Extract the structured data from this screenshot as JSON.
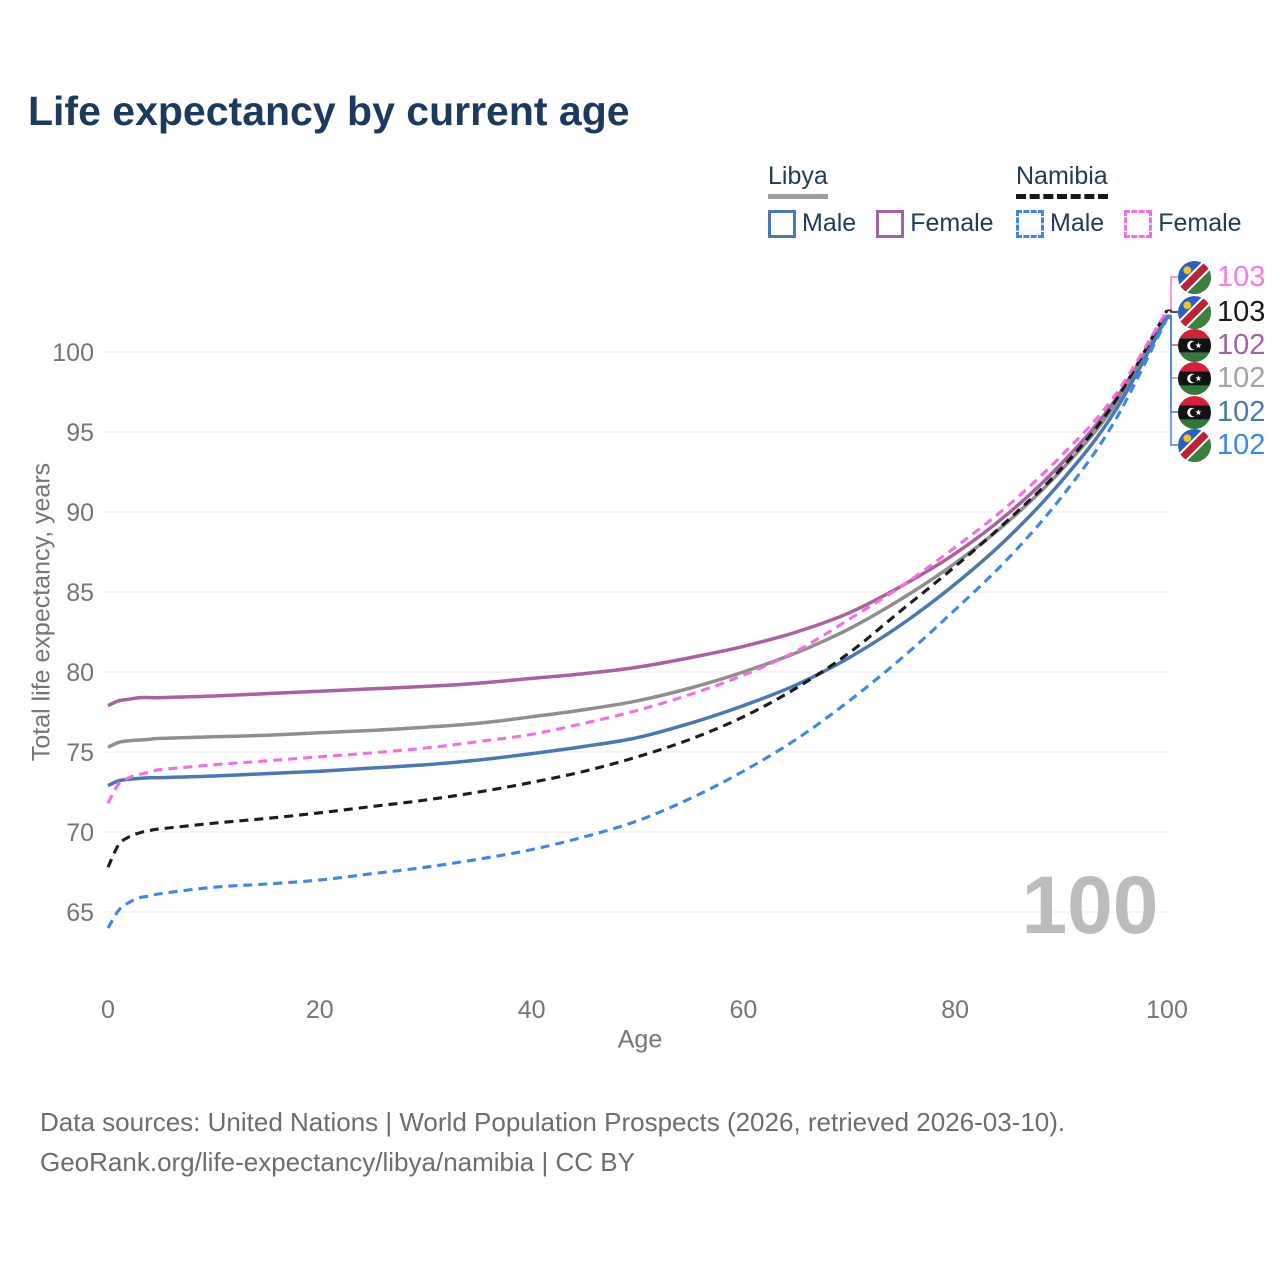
{
  "title": "Life expectancy by current age",
  "legend": {
    "groups": [
      {
        "title": "Libya",
        "line_style": "solid",
        "items": [
          {
            "label": "Male",
            "series": "libya_male"
          },
          {
            "label": "Female",
            "series": "libya_female"
          }
        ]
      },
      {
        "title": "Namibia",
        "line_style": "dashed",
        "items": [
          {
            "label": "Male",
            "series": "namibia_male"
          },
          {
            "label": "Female",
            "series": "namibia_female"
          }
        ]
      }
    ]
  },
  "watermark": {
    "value": "100"
  },
  "footer": {
    "line1": "Data sources: United Nations | World Population Prospects (2026, retrieved 2026-03-10).",
    "line2": "GeoRank.org/life-expectancy/libya/namibia | CC BY"
  },
  "colors": {
    "title_navy": "#1c3a5e",
    "axis_text": "#757575",
    "gridline": "#ebebeb",
    "watermark_gray": "#bcbcbc",
    "libya_underline": "#9e9e9e",
    "namibia_underline": "#171717"
  },
  "chart_data": {
    "type": "line",
    "title": "Life expectancy by current age",
    "xlabel": "Age",
    "ylabel": "Total life expectancy, years",
    "xlim": [
      0,
      100
    ],
    "ylim": [
      62,
      106
    ],
    "x_ticks": [
      0,
      20,
      40,
      60,
      80,
      100
    ],
    "y_ticks": [
      65,
      70,
      75,
      80,
      85,
      90,
      95,
      100
    ],
    "grid": "horizontal",
    "legend_position": "top-right",
    "x": [
      0,
      1,
      2,
      3,
      4,
      5,
      10,
      15,
      20,
      25,
      30,
      35,
      40,
      45,
      50,
      55,
      60,
      65,
      70,
      75,
      80,
      85,
      90,
      95,
      100
    ],
    "series": [
      {
        "key": "libya_female",
        "name": "Libya Female",
        "country": "Libya",
        "sex": "Female",
        "color": "#a8639f",
        "dashed": false,
        "values": [
          77.9,
          78.2,
          78.3,
          78.4,
          78.4,
          78.4,
          78.5,
          78.65,
          78.8,
          78.95,
          79.1,
          79.3,
          79.6,
          79.9,
          80.3,
          80.9,
          81.6,
          82.5,
          83.7,
          85.4,
          87.4,
          89.9,
          93.0,
          96.9,
          102.3
        ]
      },
      {
        "key": "libya_both",
        "name": "Libya Both sexes",
        "country": "Libya",
        "sex": "Both",
        "color": "#8f8f8f",
        "dashed": false,
        "values": [
          75.3,
          75.6,
          75.7,
          75.75,
          75.8,
          75.85,
          75.95,
          76.05,
          76.2,
          76.35,
          76.55,
          76.8,
          77.2,
          77.65,
          78.2,
          79.0,
          80.0,
          81.2,
          82.7,
          84.6,
          86.8,
          89.4,
          92.6,
          96.6,
          102.2
        ]
      },
      {
        "key": "libya_male",
        "name": "Libya Male",
        "country": "Libya",
        "sex": "Male",
        "color": "#4b78b4",
        "dashed": false,
        "values": [
          72.9,
          73.2,
          73.3,
          73.35,
          73.4,
          73.4,
          73.5,
          73.65,
          73.8,
          74.0,
          74.2,
          74.5,
          74.9,
          75.35,
          75.9,
          76.8,
          77.9,
          79.2,
          80.9,
          83.0,
          85.5,
          88.4,
          91.9,
          96.2,
          102.2
        ]
      },
      {
        "key": "namibia_male",
        "name": "Namibia Male",
        "country": "Namibia",
        "sex": "Male",
        "color": "#3c86ef",
        "dashed": true,
        "values": [
          64.0,
          65.1,
          65.6,
          65.9,
          66.0,
          66.15,
          66.55,
          66.75,
          67.0,
          67.4,
          67.8,
          68.3,
          68.9,
          69.7,
          70.7,
          72.1,
          73.8,
          75.8,
          78.2,
          80.9,
          83.9,
          87.1,
          90.9,
          95.6,
          102.1
        ]
      },
      {
        "key": "namibia_both",
        "name": "Namibia Both sexes",
        "country": "Namibia",
        "sex": "Both",
        "color": "#1c1c1c",
        "dashed": true,
        "values": [
          67.8,
          69.2,
          69.7,
          69.95,
          70.1,
          70.2,
          70.55,
          70.85,
          71.2,
          71.6,
          72.0,
          72.5,
          73.1,
          73.8,
          74.7,
          75.8,
          77.2,
          79.0,
          81.2,
          83.9,
          86.6,
          89.5,
          92.7,
          96.8,
          102.6
        ]
      },
      {
        "key": "namibia_female",
        "name": "Namibia Female",
        "country": "Namibia",
        "sex": "Female",
        "color": "#f46ede",
        "dashed": true,
        "values": [
          71.8,
          73.0,
          73.4,
          73.6,
          73.75,
          73.9,
          74.2,
          74.45,
          74.7,
          74.95,
          75.25,
          75.65,
          76.1,
          76.8,
          77.6,
          78.6,
          79.8,
          81.3,
          83.3,
          85.4,
          87.8,
          90.4,
          93.5,
          97.2,
          102.6
        ]
      }
    ],
    "end_labels": [
      {
        "series": "namibia_female",
        "flag": "namibia",
        "value": "103",
        "color": "#fb79e1"
      },
      {
        "series": "namibia_both",
        "flag": "namibia",
        "value": "103",
        "color": "#1a1a1a"
      },
      {
        "series": "libya_female",
        "flag": "libya",
        "value": "102",
        "color": "#a4639e"
      },
      {
        "series": "libya_both",
        "flag": "libya",
        "value": "102",
        "color": "#a3a3a3"
      },
      {
        "series": "libya_male",
        "flag": "libya",
        "value": "102",
        "color": "#4b78b4"
      },
      {
        "series": "namibia_male",
        "flag": "namibia",
        "value": "102",
        "color": "#3c86ef"
      }
    ]
  }
}
